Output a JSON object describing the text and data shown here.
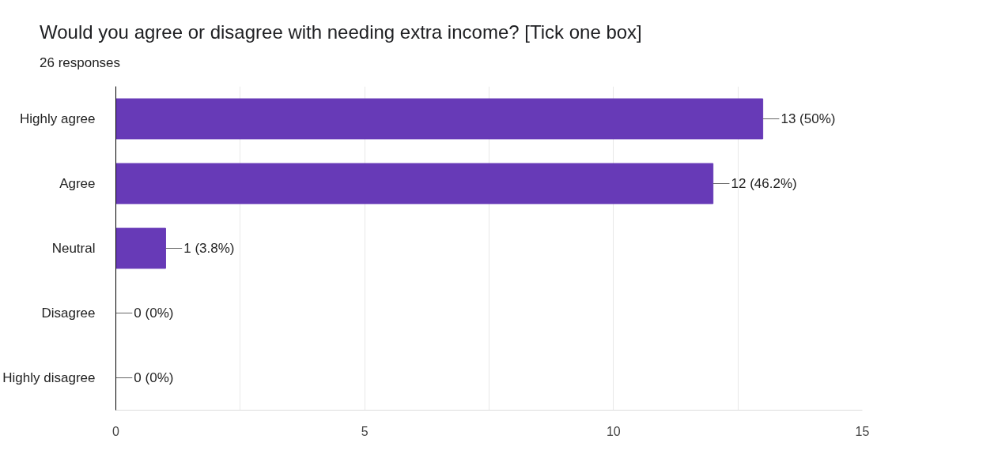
{
  "chart_data": {
    "type": "bar",
    "orientation": "horizontal",
    "title": "Would you agree or disagree with needing extra income? [Tick one box]",
    "subtitle": "26 responses",
    "categories": [
      "Highly agree",
      "Agree",
      "Neutral",
      "Disagree",
      "Highly disagree"
    ],
    "values": [
      13,
      12,
      1,
      0,
      0
    ],
    "value_labels": [
      "13 (50%)",
      "12 (46.2%)",
      "1 (3.8%)",
      "0 (0%)",
      "0 (0%)"
    ],
    "color": "#673ab7",
    "xlim": [
      0,
      15
    ],
    "xticks": [
      0,
      {
        "value": 2.5,
        "label": null
      },
      5,
      {
        "value": 7.5,
        "label": null
      },
      10,
      {
        "value": 12.5,
        "label": null
      },
      15
    ],
    "grid": "x",
    "legend": false
  }
}
